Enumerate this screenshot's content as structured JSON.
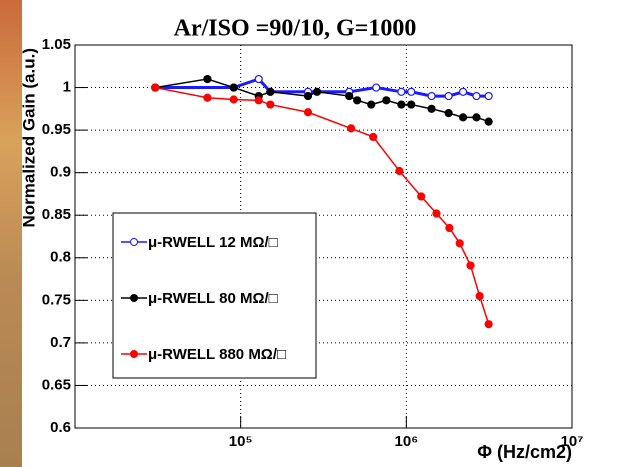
{
  "chart_data": {
    "type": "scatter",
    "title": "Ar/ISO =90/10, G=1000",
    "y_label": "Normalized Gain (a.u.)",
    "x_label": "Φ (Hz/cm2)",
    "xscale": "log",
    "xlim": [
      10000,
      10000000
    ],
    "xticks": [
      {
        "value": 100000,
        "label": "10⁵"
      },
      {
        "value": 1000000,
        "label": "10⁶"
      },
      {
        "value": 10000000,
        "label": "10⁷"
      }
    ],
    "ylim": [
      0.6,
      1.05
    ],
    "yticks": [
      0.6,
      0.65,
      0.7,
      0.75,
      0.8,
      0.85,
      0.9,
      0.95,
      1,
      1.05
    ],
    "grid": true,
    "legend": "lower-left",
    "series": [
      {
        "name": "μ-RWELL  12 MΩ/□",
        "color": "#1a1aff",
        "marker": "open",
        "x": [
          30500,
          90800,
          128500,
          151000,
          255000,
          452000,
          658000,
          933000,
          1070000,
          1420000,
          1800000,
          2200000,
          2650000,
          3140000
        ],
        "values": [
          1.0,
          1.0,
          1.01,
          0.995,
          0.995,
          0.995,
          1.0,
          0.995,
          0.995,
          0.99,
          0.99,
          0.995,
          0.99,
          0.99
        ]
      },
      {
        "name": "μ-RWELL 80 MΩ/□",
        "color": "#000000",
        "marker": "filled",
        "x": [
          30500,
          63000,
          90800,
          128500,
          151000,
          255000,
          289000,
          452000,
          505000,
          614000,
          757000,
          933000,
          1070000,
          1420000,
          1800000,
          2200000,
          2650000,
          3140000
        ],
        "values": [
          1.0,
          1.01,
          1.0,
          0.99,
          0.995,
          0.99,
          0.995,
          0.99,
          0.985,
          0.98,
          0.985,
          0.98,
          0.98,
          0.975,
          0.97,
          0.965,
          0.965,
          0.96
        ]
      },
      {
        "name": "μ-RWELL 880 MΩ/□",
        "color": "#ff0000",
        "marker": "filled",
        "x": [
          30500,
          63000,
          90800,
          128500,
          151000,
          255000,
          464000,
          631000,
          908000,
          1230000,
          1520000,
          1820000,
          2100000,
          2440000,
          2770000,
          3140000
        ],
        "values": [
          1.0,
          0.988,
          0.986,
          0.985,
          0.98,
          0.971,
          0.952,
          0.942,
          0.902,
          0.872,
          0.852,
          0.835,
          0.817,
          0.791,
          0.755,
          0.722
        ]
      }
    ]
  }
}
